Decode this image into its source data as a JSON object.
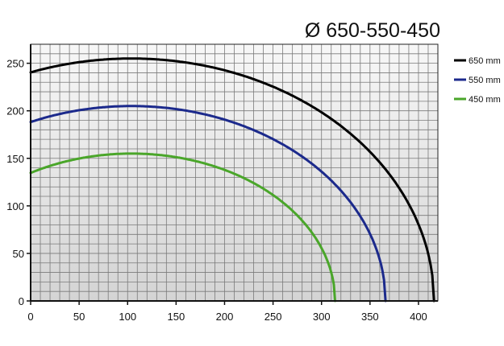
{
  "chart_data": {
    "type": "line",
    "title": "Ø 650-550-450",
    "xlabel": "",
    "ylabel": "",
    "xlim": [
      0,
      420
    ],
    "ylim": [
      0,
      270
    ],
    "x_ticks": [
      0,
      50,
      100,
      150,
      200,
      250,
      300,
      350,
      400
    ],
    "y_ticks": [
      0,
      50,
      100,
      150,
      200,
      250
    ],
    "grid": true,
    "grid_minor_step_x": 10,
    "grid_minor_step_y": 10,
    "legend_position": "right",
    "series": [
      {
        "name": "650 mm",
        "color": "#000000",
        "center": [
          104,
          0
        ],
        "radius_x": 312,
        "radius_y": 255,
        "x_range": [
          0,
          416
        ]
      },
      {
        "name": "550 mm",
        "color": "#1c2a8c",
        "center": [
          104,
          0
        ],
        "radius_x": 262,
        "radius_y": 205,
        "x_range": [
          0,
          366
        ]
      },
      {
        "name": "450 mm",
        "color": "#4aa62a",
        "center": [
          104,
          0
        ],
        "radius_x": 210,
        "radius_y": 155,
        "x_range": [
          0,
          314
        ]
      }
    ]
  }
}
